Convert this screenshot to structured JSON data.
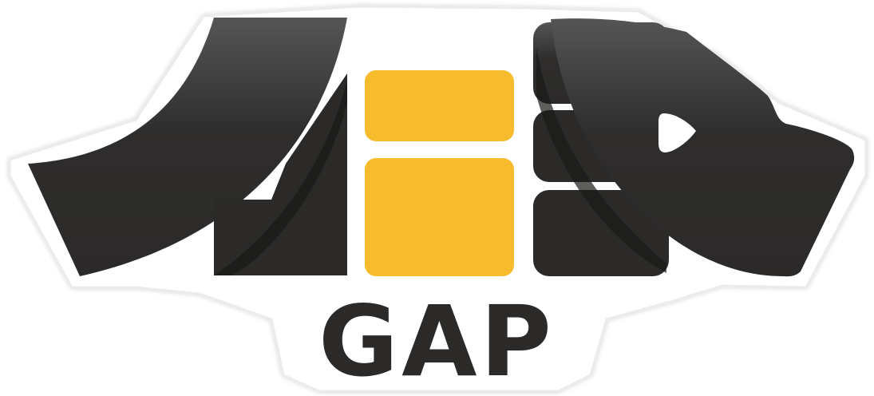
{
  "logo": {
    "wordmark": "GAP",
    "colors": {
      "dark": "#2b2a29",
      "dark_top": "#4f4f4f",
      "shadow": "#1a1a18",
      "accent": "#f7bb2e",
      "background": "#ffffff",
      "outline": "#e6e6e6"
    }
  }
}
